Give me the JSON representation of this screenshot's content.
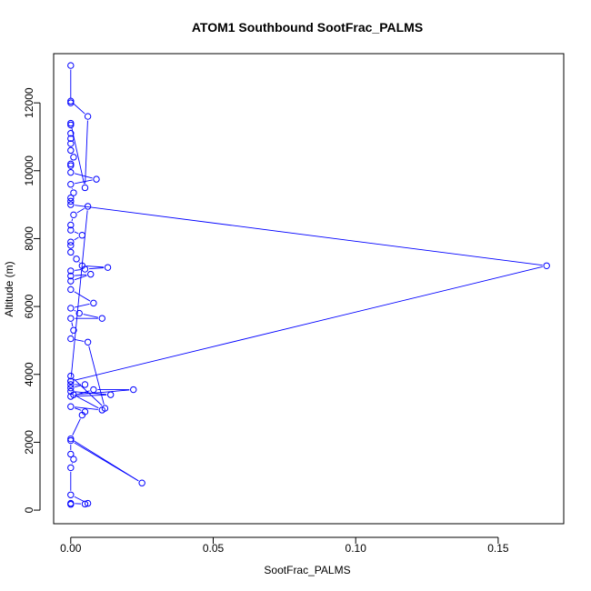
{
  "chart_data": {
    "type": "line",
    "title": "ATOM1 Southbound SootFrac_PALMS",
    "xlabel": "SootFrac_PALMS",
    "ylabel": "Altitude (m)",
    "xlim": [
      -0.006,
      0.173
    ],
    "ylim": [
      -400,
      13450
    ],
    "x_ticks": [
      0.0,
      0.05,
      0.1,
      0.15
    ],
    "x_tick_labels": [
      "0.00",
      "0.05",
      "0.10",
      "0.15"
    ],
    "y_ticks": [
      0,
      2000,
      4000,
      6000,
      8000,
      10000,
      12000
    ],
    "y_tick_labels": [
      "0",
      "2000",
      "4000",
      "6000",
      "8000",
      "10000",
      "12000"
    ],
    "grid": false,
    "legend": "none",
    "marker": "open-circle",
    "color": "#0000ff",
    "series": [
      {
        "values": [
          [
            0.0,
            13100
          ],
          [
            0.0,
            12000
          ],
          [
            0.0,
            12050
          ],
          [
            0.006,
            11600
          ],
          [
            0.005,
            9500
          ],
          [
            0.0,
            11400
          ],
          [
            0.0,
            11350
          ],
          [
            0.0,
            11100
          ],
          [
            0.0,
            10950
          ],
          [
            0.0,
            10800
          ],
          [
            0.0,
            10600
          ],
          [
            0.001,
            10400
          ],
          [
            0.0,
            10200
          ],
          [
            0.0,
            10150
          ],
          [
            0.0,
            9950
          ],
          [
            0.009,
            9750
          ],
          [
            0.0,
            9600
          ],
          [
            0.001,
            9350
          ],
          [
            0.0,
            9200
          ],
          [
            0.0,
            9100
          ],
          [
            0.0,
            9000
          ],
          [
            0.167,
            7200
          ],
          [
            0.0,
            3800
          ],
          [
            0.006,
            8950
          ],
          [
            0.001,
            8700
          ],
          [
            0.0,
            8400
          ],
          [
            0.0,
            8250
          ],
          [
            0.004,
            8100
          ],
          [
            0.0,
            7900
          ],
          [
            0.0,
            7800
          ],
          [
            0.0,
            7600
          ],
          [
            0.002,
            7400
          ],
          [
            0.004,
            7200
          ],
          [
            0.013,
            7150
          ],
          [
            0.005,
            7100
          ],
          [
            0.0,
            7050
          ],
          [
            0.0,
            6900
          ],
          [
            0.007,
            6950
          ],
          [
            0.0,
            6750
          ],
          [
            0.0,
            6500
          ],
          [
            0.008,
            6100
          ],
          [
            0.0,
            5950
          ],
          [
            0.003,
            5800
          ],
          [
            0.011,
            5650
          ],
          [
            0.0,
            5650
          ],
          [
            0.001,
            5300
          ],
          [
            0.0,
            5050
          ],
          [
            0.006,
            4950
          ],
          [
            0.012,
            3000
          ],
          [
            0.0,
            3950
          ],
          [
            0.0,
            3800
          ],
          [
            0.0,
            3700
          ],
          [
            0.005,
            3700
          ],
          [
            0.0,
            3600
          ],
          [
            0.0,
            3500
          ],
          [
            0.014,
            3400
          ],
          [
            0.0,
            3350
          ],
          [
            0.008,
            3550
          ],
          [
            0.022,
            3550
          ],
          [
            0.001,
            3400
          ],
          [
            0.011,
            2950
          ],
          [
            0.0,
            3050
          ],
          [
            0.005,
            2900
          ],
          [
            0.004,
            2800
          ],
          [
            0.0,
            2100
          ],
          [
            0.025,
            800
          ],
          [
            0.0,
            2050
          ],
          [
            0.0,
            1650
          ],
          [
            0.001,
            1500
          ],
          [
            0.0,
            1250
          ],
          [
            0.0,
            450
          ],
          [
            0.006,
            200
          ],
          [
            0.005,
            180
          ],
          [
            0.0,
            200
          ],
          [
            0.0,
            170
          ]
        ]
      }
    ]
  }
}
